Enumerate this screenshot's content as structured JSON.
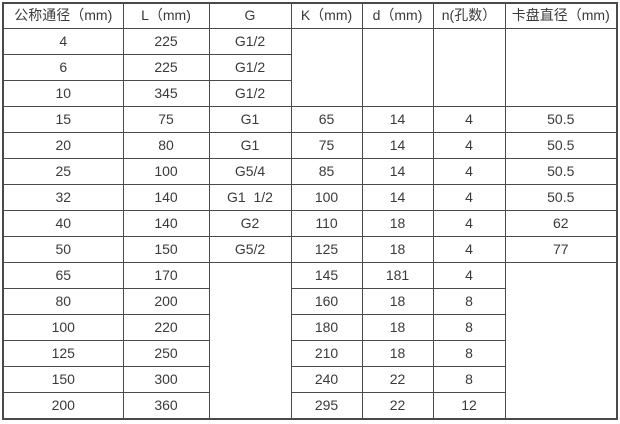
{
  "colors": {
    "border": "#4a4a4a",
    "text": "#3a3a3a",
    "background": "#ffffff"
  },
  "table": {
    "headers": [
      "公称通径（mm)",
      "L（mm)",
      "G",
      "K（mm)",
      "d（mm)",
      "n(孔数）",
      "卡盘直径（mm)"
    ],
    "rows": [
      [
        {
          "t": "4"
        },
        {
          "t": "225"
        },
        {
          "t": "G1/2"
        },
        {
          "t": "",
          "rs": 3
        },
        {
          "t": "",
          "rs": 3
        },
        {
          "t": "",
          "rs": 3
        },
        {
          "t": "",
          "rs": 3
        }
      ],
      [
        {
          "t": "6"
        },
        {
          "t": "225"
        },
        {
          "t": "G1/2"
        }
      ],
      [
        {
          "t": "10"
        },
        {
          "t": "345"
        },
        {
          "t": "G1/2"
        }
      ],
      [
        {
          "t": "15"
        },
        {
          "t": "75"
        },
        {
          "t": "G1"
        },
        {
          "t": "65"
        },
        {
          "t": "14"
        },
        {
          "t": "4"
        },
        {
          "t": "50.5"
        }
      ],
      [
        {
          "t": "20"
        },
        {
          "t": "80"
        },
        {
          "t": "G1"
        },
        {
          "t": "75"
        },
        {
          "t": "14"
        },
        {
          "t": "4"
        },
        {
          "t": "50.5"
        }
      ],
      [
        {
          "t": "25"
        },
        {
          "t": "100"
        },
        {
          "t": "G5/4"
        },
        {
          "t": "85"
        },
        {
          "t": "14"
        },
        {
          "t": "4"
        },
        {
          "t": "50.5"
        }
      ],
      [
        {
          "t": "32"
        },
        {
          "t": "140"
        },
        {
          "t": "G1  1/2"
        },
        {
          "t": "100"
        },
        {
          "t": "14"
        },
        {
          "t": "4"
        },
        {
          "t": "50.5"
        }
      ],
      [
        {
          "t": "40"
        },
        {
          "t": "140"
        },
        {
          "t": "G2"
        },
        {
          "t": "110"
        },
        {
          "t": "18"
        },
        {
          "t": "4"
        },
        {
          "t": "62"
        }
      ],
      [
        {
          "t": "50"
        },
        {
          "t": "150"
        },
        {
          "t": "G5/2"
        },
        {
          "t": "125"
        },
        {
          "t": "18"
        },
        {
          "t": "4"
        },
        {
          "t": "77"
        }
      ],
      [
        {
          "t": "65"
        },
        {
          "t": "170"
        },
        {
          "t": "",
          "rs": 6
        },
        {
          "t": "145"
        },
        {
          "t": "181"
        },
        {
          "t": "4"
        },
        {
          "t": "",
          "rs": 6
        }
      ],
      [
        {
          "t": "80"
        },
        {
          "t": "200"
        },
        {
          "t": "160"
        },
        {
          "t": "18"
        },
        {
          "t": "8"
        }
      ],
      [
        {
          "t": "100"
        },
        {
          "t": "220"
        },
        {
          "t": "180"
        },
        {
          "t": "18"
        },
        {
          "t": "8"
        }
      ],
      [
        {
          "t": "125"
        },
        {
          "t": "250"
        },
        {
          "t": "210"
        },
        {
          "t": "18"
        },
        {
          "t": "8"
        }
      ],
      [
        {
          "t": "150"
        },
        {
          "t": "300"
        },
        {
          "t": "240"
        },
        {
          "t": "22"
        },
        {
          "t": "8"
        }
      ],
      [
        {
          "t": "200"
        },
        {
          "t": "360"
        },
        {
          "t": "295"
        },
        {
          "t": "22"
        },
        {
          "t": "12"
        }
      ]
    ]
  }
}
